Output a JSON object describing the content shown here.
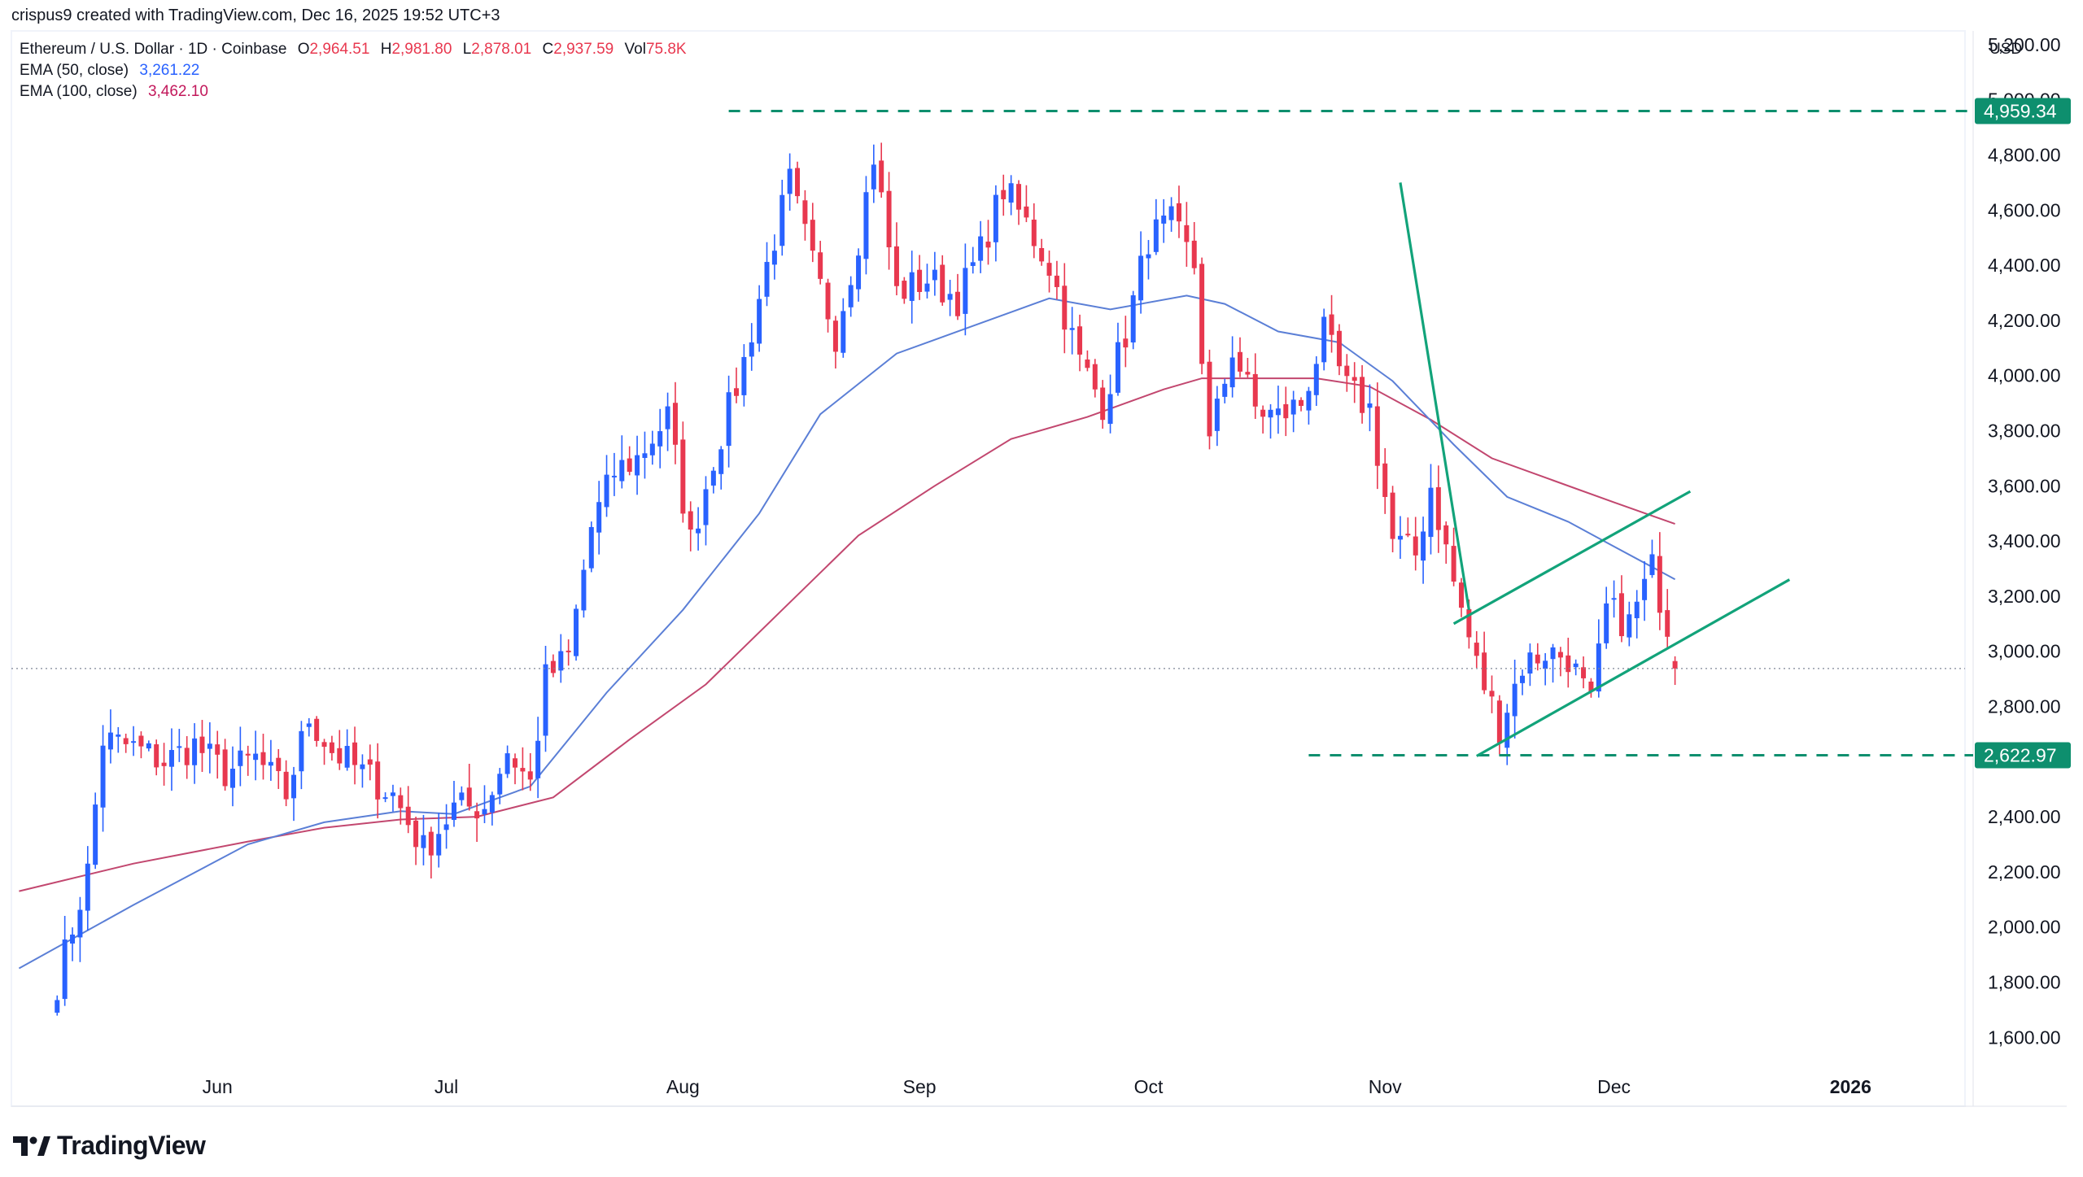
{
  "header": {
    "credit": "crispus9 created with TradingView.com, Dec 16, 2025 19:52 UTC+3",
    "symbol": "Ethereum / U.S. Dollar · 1D · Coinbase",
    "ohlc": {
      "o_label": "O",
      "o": "2,964.51",
      "h_label": "H",
      "h": "2,981.80",
      "l_label": "L",
      "l": "2,878.01",
      "c_label": "C",
      "c": "2,937.59",
      "vol_label": "Vol",
      "vol": "75.8K"
    },
    "ema50": {
      "label": "EMA (50, close)",
      "value": "3,261.22",
      "color": "#2962ff"
    },
    "ema100": {
      "label": "EMA (100, close)",
      "value": "3,462.10",
      "color": "#c2185b"
    },
    "currency": "USD"
  },
  "brand": {
    "name": "TradingView",
    "icon": "tradingview-logo-icon"
  },
  "colors": {
    "up": "#2962ff",
    "down": "#e8384f",
    "level": "#0e8f6e",
    "trend": "#12a37a",
    "ema50": "#5b7fd6",
    "ema100": "#c2476f"
  },
  "chart_data": {
    "type": "candlestick",
    "x_ticks": [
      "Jun",
      "Jul",
      "Aug",
      "Sep",
      "Oct",
      "Nov",
      "Dec",
      "2026"
    ],
    "x_tick_days": [
      21,
      51,
      82,
      113,
      143,
      174,
      204,
      235
    ],
    "y_ticks": [
      1600,
      1800,
      2000,
      2200,
      2400,
      2800,
      3000,
      3200,
      3400,
      3600,
      3800,
      4000,
      4200,
      4400,
      4600,
      4800,
      5000,
      5200
    ],
    "y_tick_labels": [
      "1,600.00",
      "1,800.00",
      "2,000.00",
      "2,200.00",
      "2,400.00",
      "2,800.00",
      "3,000.00",
      "3,200.00",
      "3,400.00",
      "3,600.00",
      "3,800.00",
      "4,000.00",
      "4,200.00",
      "4,400.00",
      "4,600.00",
      "4,800.00",
      "5,000.00",
      "5,200.00"
    ],
    "y_range": [
      1350,
      5250
    ],
    "x_range_days": [
      -6,
      250
    ],
    "levels": [
      {
        "name": "resistance",
        "value": 4959.34,
        "label": "4,959.34",
        "from_day": 88
      },
      {
        "name": "support",
        "value": 2622.97,
        "label": "2,622.97",
        "from_day": 164
      }
    ],
    "last_close": 2937.59,
    "trendlines": [
      {
        "name": "downtrend",
        "p1": [
          176,
          4700
        ],
        "p2": [
          185,
          3150
        ]
      },
      {
        "name": "upper-channel",
        "p1": [
          183,
          3100
        ],
        "p2": [
          214,
          3580
        ]
      },
      {
        "name": "lower-channel",
        "p1": [
          186,
          2620
        ],
        "p2": [
          227,
          3260
        ]
      }
    ],
    "anchors": [
      [
        0,
        1800
      ],
      [
        4,
        2200
      ],
      [
        6,
        2680
      ],
      [
        10,
        2650
      ],
      [
        14,
        2600
      ],
      [
        18,
        2660
      ],
      [
        22,
        2560
      ],
      [
        26,
        2610
      ],
      [
        30,
        2480
      ],
      [
        33,
        2760
      ],
      [
        36,
        2640
      ],
      [
        40,
        2560
      ],
      [
        44,
        2480
      ],
      [
        48,
        2280
      ],
      [
        52,
        2430
      ],
      [
        56,
        2440
      ],
      [
        59,
        2640
      ],
      [
        62,
        2520
      ],
      [
        64,
        2900
      ],
      [
        67,
        2980
      ],
      [
        70,
        3450
      ],
      [
        73,
        3650
      ],
      [
        76,
        3700
      ],
      [
        80,
        3850
      ],
      [
        83,
        3400
      ],
      [
        86,
        3700
      ],
      [
        90,
        4050
      ],
      [
        93,
        4400
      ],
      [
        96,
        4700
      ],
      [
        99,
        4400
      ],
      [
        102,
        4150
      ],
      [
        105,
        4500
      ],
      [
        107,
        4800
      ],
      [
        110,
        4300
      ],
      [
        114,
        4350
      ],
      [
        118,
        4280
      ],
      [
        121,
        4450
      ],
      [
        124,
        4680
      ],
      [
        127,
        4550
      ],
      [
        130,
        4400
      ],
      [
        134,
        4050
      ],
      [
        137,
        3900
      ],
      [
        140,
        4150
      ],
      [
        143,
        4500
      ],
      [
        146,
        4550
      ],
      [
        149,
        4400
      ],
      [
        151,
        3750
      ],
      [
        154,
        4100
      ],
      [
        157,
        3880
      ],
      [
        160,
        3850
      ],
      [
        163,
        3900
      ],
      [
        166,
        4150
      ],
      [
        169,
        3950
      ],
      [
        172,
        3880
      ],
      [
        175,
        3400
      ],
      [
        178,
        3350
      ],
      [
        180,
        3600
      ],
      [
        183,
        3250
      ],
      [
        186,
        2950
      ],
      [
        189,
        2730
      ],
      [
        192,
        2950
      ],
      [
        195,
        3000
      ],
      [
        198,
        2980
      ],
      [
        201,
        2800
      ],
      [
        203,
        3150
      ],
      [
        206,
        3100
      ],
      [
        209,
        3300
      ],
      [
        211,
        3100
      ],
      [
        212,
        2938
      ]
    ],
    "ema50": [
      [
        -5,
        1850
      ],
      [
        10,
        2080
      ],
      [
        25,
        2300
      ],
      [
        35,
        2380
      ],
      [
        45,
        2420
      ],
      [
        52,
        2410
      ],
      [
        62,
        2510
      ],
      [
        72,
        2850
      ],
      [
        82,
        3150
      ],
      [
        92,
        3500
      ],
      [
        100,
        3860
      ],
      [
        110,
        4080
      ],
      [
        120,
        4180
      ],
      [
        130,
        4280
      ],
      [
        138,
        4240
      ],
      [
        148,
        4290
      ],
      [
        153,
        4260
      ],
      [
        160,
        4160
      ],
      [
        168,
        4120
      ],
      [
        175,
        3980
      ],
      [
        183,
        3750
      ],
      [
        190,
        3560
      ],
      [
        198,
        3470
      ],
      [
        204,
        3380
      ],
      [
        212,
        3261
      ]
    ],
    "ema100": [
      [
        -5,
        2130
      ],
      [
        10,
        2230
      ],
      [
        25,
        2310
      ],
      [
        35,
        2360
      ],
      [
        45,
        2390
      ],
      [
        55,
        2400
      ],
      [
        65,
        2470
      ],
      [
        75,
        2680
      ],
      [
        85,
        2880
      ],
      [
        95,
        3150
      ],
      [
        105,
        3420
      ],
      [
        115,
        3600
      ],
      [
        125,
        3770
      ],
      [
        135,
        3850
      ],
      [
        145,
        3950
      ],
      [
        150,
        3990
      ],
      [
        158,
        3990
      ],
      [
        165,
        3990
      ],
      [
        172,
        3960
      ],
      [
        180,
        3840
      ],
      [
        188,
        3700
      ],
      [
        196,
        3620
      ],
      [
        204,
        3540
      ],
      [
        212,
        3462
      ]
    ]
  }
}
